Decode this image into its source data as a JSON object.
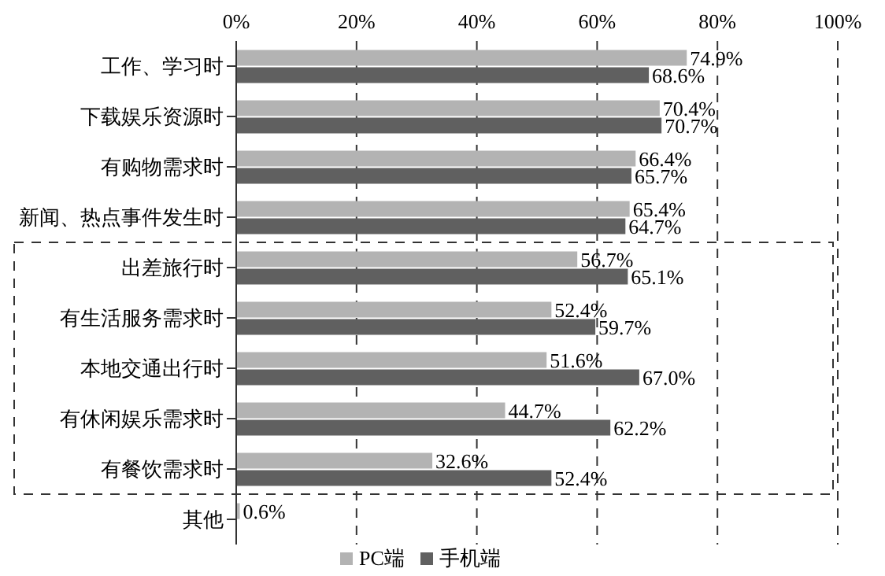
{
  "chart_data": {
    "type": "bar",
    "orientation": "horizontal",
    "categories": [
      "工作、学习时",
      "下载娱乐资源时",
      "有购物需求时",
      "新闻、热点事件发生时",
      "出差旅行时",
      "有生活服务需求时",
      "本地交通出行时",
      "有休闲娱乐需求时",
      "有餐饮需求时",
      "其他"
    ],
    "series": [
      {
        "name": "PC端",
        "color": "#b3b3b3",
        "values": [
          74.9,
          70.4,
          66.4,
          65.4,
          56.7,
          52.4,
          51.6,
          44.7,
          32.6,
          0.6
        ],
        "value_labels": [
          "74.9%",
          "70.4%",
          "66.4%",
          "65.4%",
          "56.7%",
          "52.4%",
          "51.6%",
          "44.7%",
          "32.6%",
          "0.6%"
        ]
      },
      {
        "name": "手机端",
        "color": "#606060",
        "values": [
          68.6,
          70.7,
          65.7,
          64.7,
          65.1,
          59.7,
          67.0,
          62.2,
          52.4,
          null
        ],
        "value_labels": [
          "68.6%",
          "70.7%",
          "65.7%",
          "64.7%",
          "65.1%",
          "59.7%",
          "67.0%",
          "62.2%",
          "52.4%",
          null
        ]
      }
    ],
    "xlim": [
      0,
      100
    ],
    "xticks": [
      {
        "value": 0,
        "label": "0%"
      },
      {
        "value": 20,
        "label": "20%"
      },
      {
        "value": 40,
        "label": "40%"
      },
      {
        "value": 60,
        "label": "60%"
      },
      {
        "value": 80,
        "label": "80%"
      },
      {
        "value": 100,
        "label": "100%"
      }
    ],
    "grid": "x",
    "legend": "bottom"
  }
}
